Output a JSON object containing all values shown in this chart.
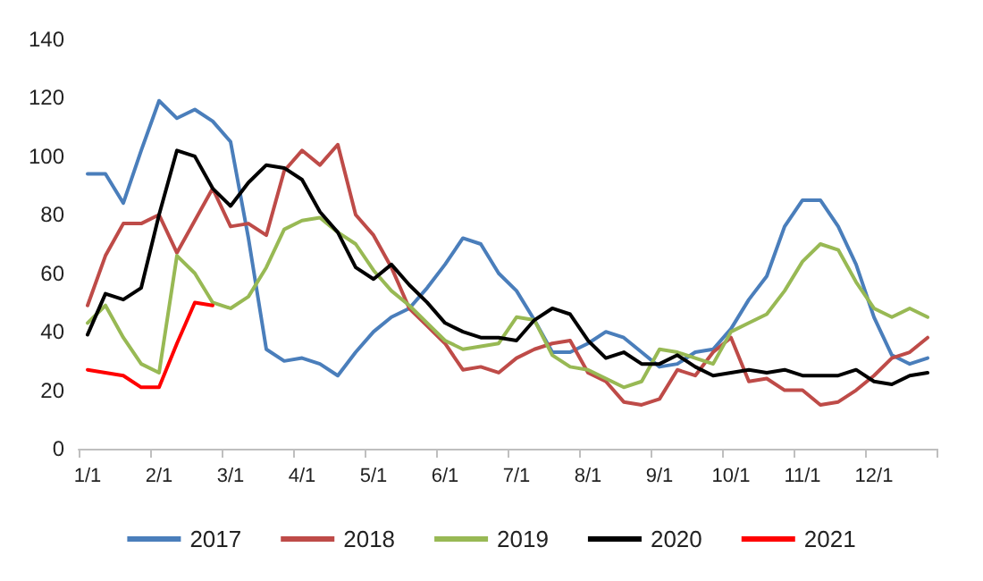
{
  "chart_data": {
    "type": "line",
    "categories": [
      "1/1",
      null,
      null,
      null,
      "2/1",
      null,
      null,
      null,
      "3/1",
      null,
      null,
      null,
      "4/1",
      null,
      null,
      null,
      "5/1",
      null,
      null,
      null,
      "6/1",
      null,
      null,
      null,
      "7/1",
      null,
      null,
      null,
      "8/1",
      null,
      null,
      null,
      "9/1",
      null,
      null,
      null,
      "10/1",
      null,
      null,
      null,
      "11/1",
      null,
      null,
      null,
      "12/1",
      null,
      null,
      null
    ],
    "series": [
      {
        "name": "2017",
        "color": "#4a7ebb",
        "values": [
          94,
          94,
          84,
          102,
          119,
          113,
          116,
          112,
          105,
          72,
          34,
          30,
          31,
          29,
          25,
          33,
          40,
          45,
          48,
          55,
          63,
          72,
          70,
          60,
          54,
          44,
          33,
          33,
          36,
          40,
          38,
          33,
          28,
          29,
          33,
          34,
          41,
          51,
          59,
          76,
          85,
          85,
          76,
          63,
          45,
          32,
          29,
          31
        ]
      },
      {
        "name": "2018",
        "color": "#be4b48",
        "values": [
          49,
          66,
          77,
          77,
          80,
          67,
          78,
          89,
          76,
          77,
          73,
          95,
          102,
          97,
          104,
          80,
          73,
          62,
          48,
          42,
          36,
          27,
          28,
          26,
          31,
          34,
          36,
          37,
          26,
          23,
          16,
          15,
          17,
          27,
          25,
          33,
          38,
          23,
          24,
          20,
          20,
          15,
          16,
          20,
          25,
          31,
          33,
          38
        ]
      },
      {
        "name": "2019",
        "color": "#98b954",
        "values": [
          43,
          49,
          38,
          29,
          26,
          66,
          60,
          50,
          48,
          52,
          62,
          75,
          78,
          79,
          74,
          70,
          61,
          54,
          49,
          43,
          37,
          34,
          35,
          36,
          45,
          44,
          32,
          28,
          27,
          24,
          21,
          23,
          34,
          33,
          31,
          29,
          40,
          43,
          46,
          54,
          64,
          70,
          68,
          57,
          48,
          45,
          48,
          45
        ]
      },
      {
        "name": "2020",
        "color": "#000000",
        "values": [
          39,
          53,
          51,
          55,
          80,
          102,
          100,
          89,
          83,
          91,
          97,
          96,
          92,
          81,
          74,
          62,
          58,
          63,
          56,
          50,
          43,
          40,
          38,
          38,
          37,
          44,
          48,
          46,
          37,
          31,
          33,
          29,
          29,
          32,
          28,
          25,
          26,
          27,
          26,
          27,
          25,
          25,
          25,
          27,
          23,
          22,
          25,
          26
        ]
      },
      {
        "name": "2021",
        "color": "#ff0000",
        "values": [
          27,
          26,
          25,
          21,
          21,
          36,
          50,
          49,
          null,
          null,
          null,
          null,
          null,
          null,
          null,
          null,
          null,
          null,
          null,
          null,
          null,
          null,
          null,
          null,
          null,
          null,
          null,
          null,
          null,
          null,
          null,
          null,
          null,
          null,
          null,
          null,
          null,
          null,
          null,
          null,
          null,
          null,
          null,
          null,
          null,
          null,
          null,
          null
        ]
      }
    ],
    "ylim": [
      0,
      140
    ],
    "yticks": [
      0,
      20,
      40,
      60,
      80,
      100,
      120,
      140
    ],
    "grid": false,
    "legend": "bottom",
    "marker": "none",
    "line_style": "solid"
  }
}
